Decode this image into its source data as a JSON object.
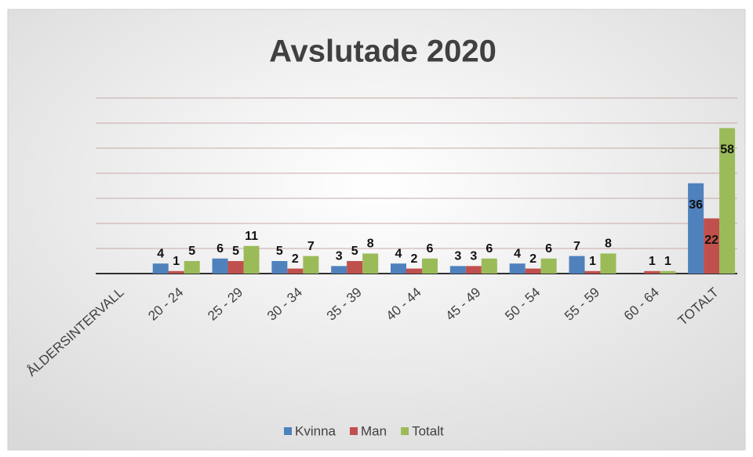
{
  "chart_data": {
    "type": "bar",
    "title": "Avslutade 2020",
    "categories": [
      "ÅLDERSINTERVALL",
      "20 - 24",
      "25 - 29",
      "30 - 34",
      "35 - 39",
      "40 - 44",
      "45 - 49",
      "50 - 54",
      "55 - 59",
      "60 - 64",
      "TOTALT"
    ],
    "series": [
      {
        "name": "Kvinna",
        "color": "#4f81bd",
        "values": [
          null,
          4,
          6,
          5,
          3,
          4,
          3,
          4,
          7,
          null,
          36
        ]
      },
      {
        "name": "Man",
        "color": "#c0504d",
        "values": [
          null,
          1,
          5,
          2,
          5,
          2,
          3,
          2,
          1,
          1,
          22
        ]
      },
      {
        "name": "Totalt",
        "color": "#9bbb59",
        "values": [
          null,
          5,
          11,
          7,
          8,
          6,
          6,
          6,
          8,
          1,
          58
        ]
      }
    ],
    "ylim": [
      0,
      70
    ],
    "yticks": [
      0,
      10,
      20,
      30,
      40,
      50,
      60,
      70
    ],
    "grid": true,
    "legend": "bottom"
  }
}
